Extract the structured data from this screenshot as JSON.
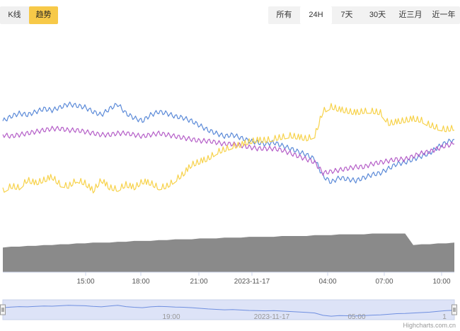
{
  "chart_toggle": [
    {
      "label": "K线",
      "active": false
    },
    {
      "label": "趋势",
      "active": true
    }
  ],
  "range_tabs": [
    {
      "label": "所有",
      "active": false
    },
    {
      "label": "24H",
      "active": true
    },
    {
      "label": "7天",
      "active": false
    },
    {
      "label": "30天",
      "active": false
    },
    {
      "label": "近三月",
      "active": false
    },
    {
      "label": "近一年",
      "active": false
    }
  ],
  "credit": "Highcharts.com.cn",
  "colors": {
    "blue": "#5b8ad8",
    "purple": "#b55fc8",
    "yellow": "#f7d24a",
    "volume": "#8a8a8a",
    "navigator_fill": "#dde3f7",
    "navigator_line": "#6f8fe0",
    "toggle_active": "#f7c948"
  },
  "chart_data": {
    "type": "line",
    "x_ticks": [
      "15:00",
      "18:00",
      "21:00",
      "2023-11-17",
      "04:00",
      "07:00",
      "10:00"
    ],
    "navigator_ticks": [
      "19:00",
      "2023-11-17",
      "05:00",
      "1"
    ],
    "series": [
      {
        "values": [
          58,
          61,
          63,
          62,
          64,
          66,
          65,
          67,
          69,
          68,
          67,
          64,
          62,
          66,
          69,
          63,
          60,
          58,
          62,
          64,
          63,
          61,
          60,
          58,
          55,
          52,
          50,
          48,
          49,
          47,
          45,
          44,
          43,
          44,
          42,
          40,
          38,
          36,
          33,
          22,
          18,
          21,
          20,
          19,
          21,
          23,
          24,
          27,
          30,
          31,
          33,
          35,
          37,
          41,
          44,
          46
        ]
      },
      {
        "values": [
          49,
          48,
          49,
          50,
          51,
          52,
          53,
          53,
          52,
          52,
          51,
          50,
          49,
          49,
          50,
          50,
          49,
          48,
          49,
          50,
          49,
          48,
          47,
          46,
          45,
          45,
          44,
          43,
          43,
          42,
          41,
          40,
          40,
          40,
          39,
          37,
          35,
          33,
          31,
          24,
          25,
          26,
          27,
          28,
          28,
          30,
          31,
          32,
          33,
          33,
          35,
          37,
          38,
          40,
          42,
          43
        ]
      },
      {
        "values": [
          11,
          14,
          13,
          18,
          16,
          18,
          20,
          15,
          14,
          18,
          16,
          11,
          18,
          13,
          12,
          15,
          13,
          17,
          16,
          13,
          14,
          18,
          22,
          28,
          30,
          32,
          36,
          38,
          40,
          41,
          43,
          44,
          44,
          45,
          46,
          47,
          46,
          45,
          47,
          63,
          66,
          64,
          63,
          62,
          63,
          63,
          62,
          55,
          56,
          57,
          58,
          57,
          54,
          52,
          51,
          52
        ]
      }
    ],
    "volume": [
      30,
      31,
      31,
      32,
      32,
      33,
      33,
      34,
      34,
      35,
      35,
      36,
      36,
      36,
      37,
      37,
      38,
      38,
      38,
      39,
      39,
      40,
      40,
      40,
      41,
      41,
      41,
      42,
      42,
      42,
      43,
      43,
      43,
      43,
      44,
      44,
      44,
      44,
      45,
      45,
      45,
      46,
      46,
      46,
      46,
      47,
      47,
      47,
      47,
      47,
      33,
      34,
      34,
      35,
      35,
      36
    ],
    "ylim": [
      0,
      100
    ],
    "grid": false,
    "legend": "none"
  }
}
